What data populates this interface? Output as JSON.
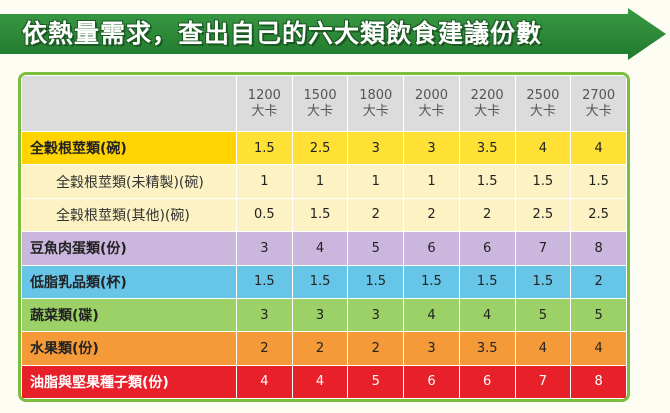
{
  "title": "依熱量需求，查出自己的六大類飲食建議份數",
  "calorie_unit": "大卡",
  "calories": [
    "1200",
    "1500",
    "1800",
    "2000",
    "2200",
    "2500",
    "2700"
  ],
  "rows": [
    {
      "label": "全穀根莖類(碗)",
      "values": [
        "1.5",
        "2.5",
        "3",
        "3",
        "3.5",
        "4",
        "4"
      ]
    },
    {
      "label": "全穀根莖類(未精製)(碗)",
      "values": [
        "1",
        "1",
        "1",
        "1",
        "1.5",
        "1.5",
        "1.5"
      ]
    },
    {
      "label": "全穀根莖類(其他)(碗)",
      "values": [
        "0.5",
        "1.5",
        "2",
        "2",
        "2",
        "2.5",
        "2.5"
      ]
    },
    {
      "label": "豆魚肉蛋類(份)",
      "values": [
        "3",
        "4",
        "5",
        "6",
        "6",
        "7",
        "8"
      ]
    },
    {
      "label": "低脂乳品類(杯)",
      "values": [
        "1.5",
        "1.5",
        "1.5",
        "1.5",
        "1.5",
        "1.5",
        "2"
      ]
    },
    {
      "label": "蔬菜類(碟)",
      "values": [
        "3",
        "3",
        "3",
        "4",
        "4",
        "5",
        "5"
      ]
    },
    {
      "label": "水果類(份)",
      "values": [
        "2",
        "2",
        "2",
        "3",
        "3.5",
        "4",
        "4"
      ]
    },
    {
      "label": "油脂與堅果種子類(份)",
      "values": [
        "4",
        "4",
        "5",
        "6",
        "6",
        "7",
        "8"
      ]
    }
  ],
  "colors": {
    "banner": "#2e8b3a",
    "frame": "#7cbf3f",
    "grains": "#ffd400",
    "grains_sub": "#fdf2c3",
    "protein": "#cbb6dd",
    "dairy": "#67c6e8",
    "veg": "#9cd168",
    "fruit": "#f59a38",
    "fat": "#e8202a"
  }
}
